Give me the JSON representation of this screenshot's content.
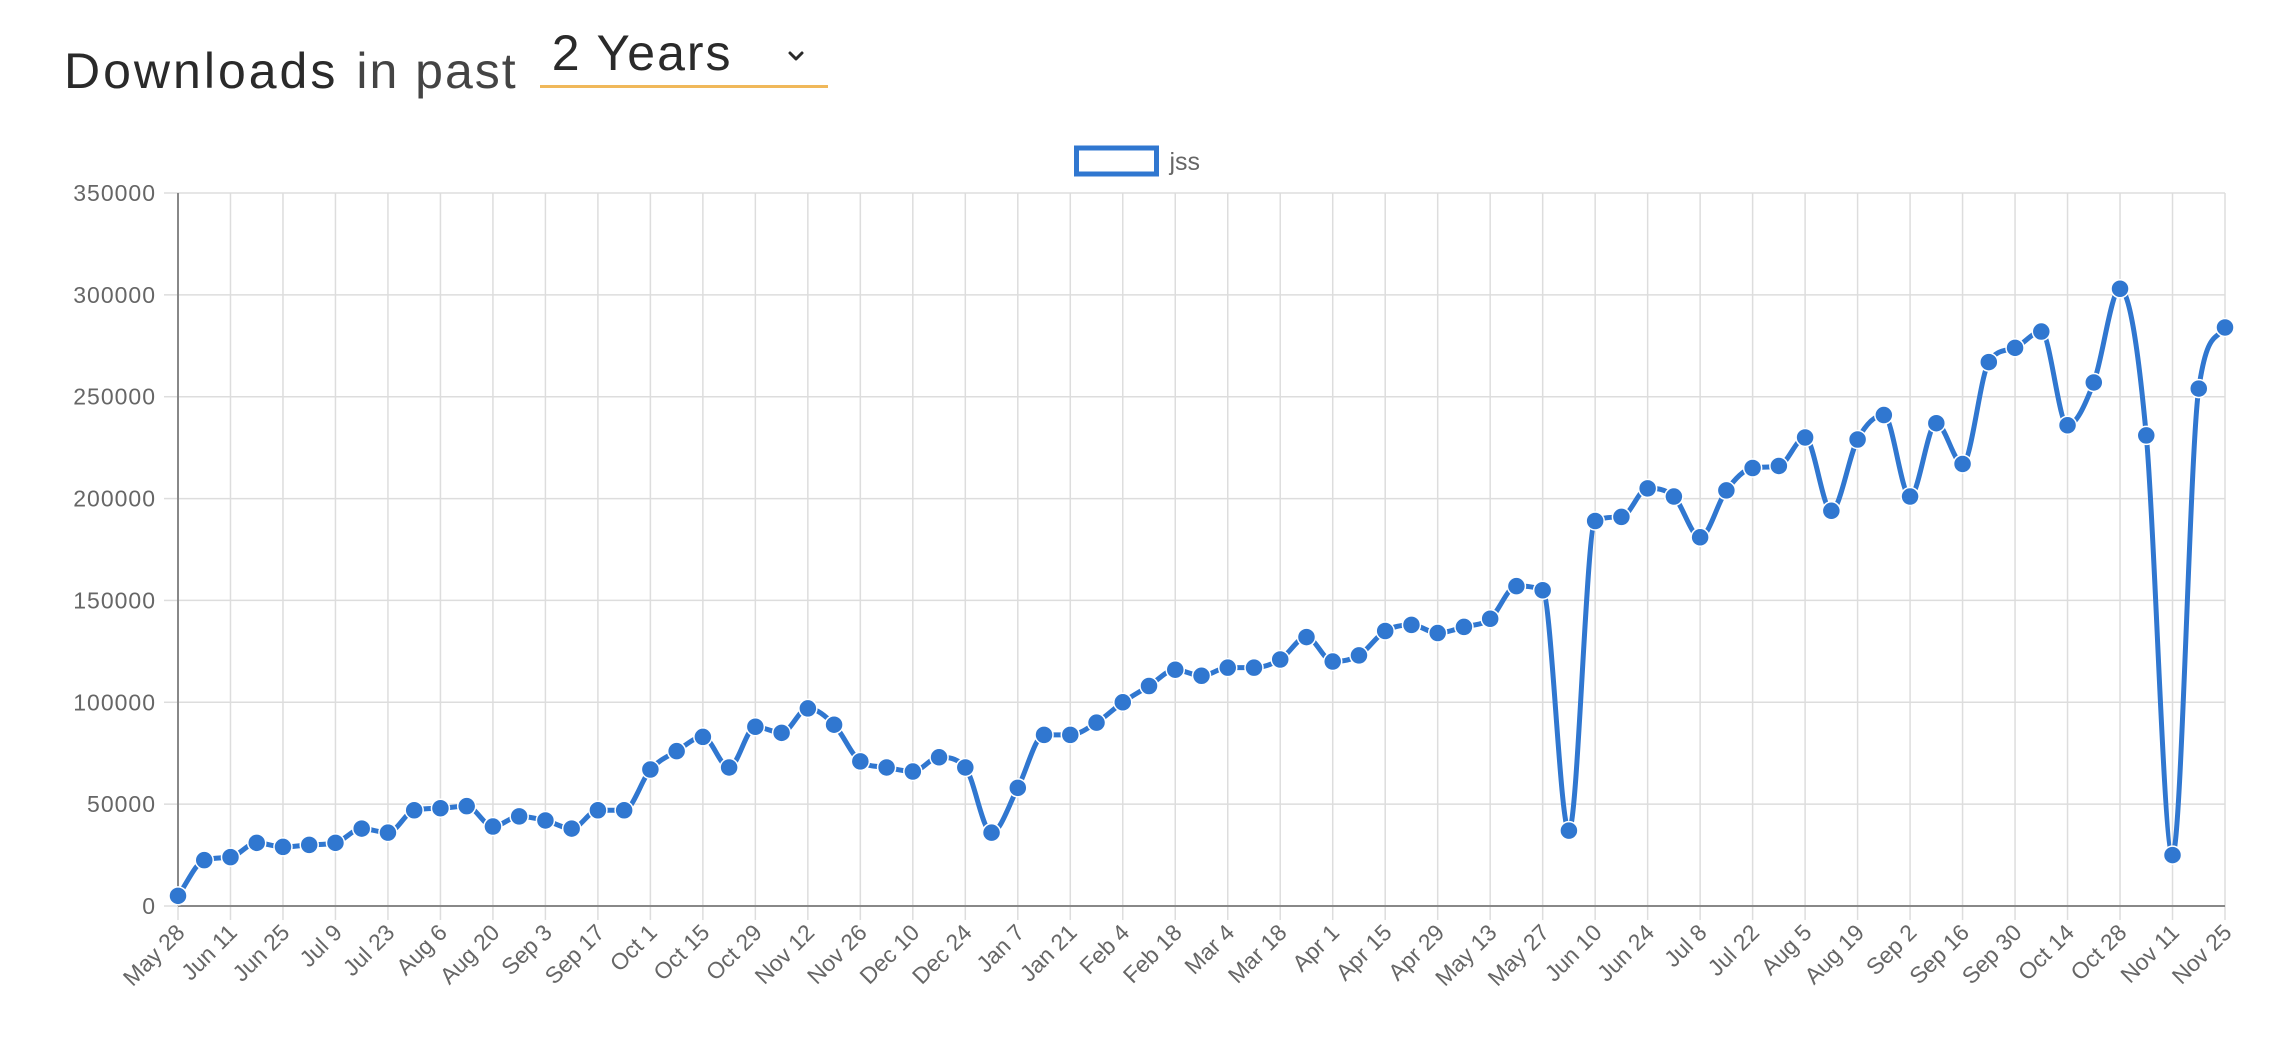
{
  "header": {
    "title": "Downloads",
    "in_past": "in past",
    "range_selected": "2 Years"
  },
  "colors": {
    "series": "#3077d0",
    "grid": "#dddddd",
    "axis": "#888888",
    "text": "#666666",
    "select_underline": "#f0b85a"
  },
  "icons": {
    "select_arrow": "chevron-down-icon"
  },
  "chart_data": {
    "type": "line",
    "legend_position": "top-center",
    "grid": true,
    "ylim": [
      0,
      350000
    ],
    "y_ticks": [
      0,
      50000,
      100000,
      150000,
      200000,
      250000,
      300000,
      350000
    ],
    "x_tick_labels": [
      "May 28",
      "Jun 11",
      "Jun 25",
      "Jul 9",
      "Jul 23",
      "Aug 6",
      "Aug 20",
      "Sep 3",
      "Sep 17",
      "Oct 1",
      "Oct 15",
      "Oct 29",
      "Nov 12",
      "Nov 26",
      "Dec 10",
      "Dec 24",
      "Jan 7",
      "Jan 21",
      "Feb 4",
      "Feb 18",
      "Mar 4",
      "Mar 18",
      "Apr 1",
      "Apr 15",
      "Apr 29",
      "May 13",
      "May 27",
      "Jun 10",
      "Jun 24",
      "Jul 8",
      "Jul 22",
      "Aug 5",
      "Aug 19",
      "Sep 2",
      "Sep 16",
      "Sep 30",
      "Oct 14",
      "Oct 28",
      "Nov 11",
      "Nov 25"
    ],
    "series": [
      {
        "name": "jss",
        "values": [
          5000,
          22500,
          24000,
          31000,
          29000,
          30000,
          31000,
          38000,
          36000,
          47000,
          48000,
          49000,
          39000,
          44000,
          42000,
          38000,
          47000,
          47000,
          67000,
          76000,
          83000,
          68000,
          88000,
          85000,
          97000,
          89000,
          71000,
          68000,
          66000,
          73000,
          68000,
          36000,
          58000,
          84000,
          84000,
          90000,
          100000,
          108000,
          116000,
          113000,
          117000,
          117000,
          121000,
          132000,
          120000,
          123000,
          135000,
          138000,
          134000,
          137000,
          141000,
          157000,
          155000,
          37000,
          189000,
          191000,
          205000,
          201000,
          181000,
          204000,
          215000,
          216000,
          230000,
          194000,
          229000,
          241000,
          201000,
          237000,
          217000,
          267000,
          274000,
          282000,
          236000,
          257000,
          303000,
          231000,
          25000,
          254000,
          284000
        ]
      }
    ]
  }
}
